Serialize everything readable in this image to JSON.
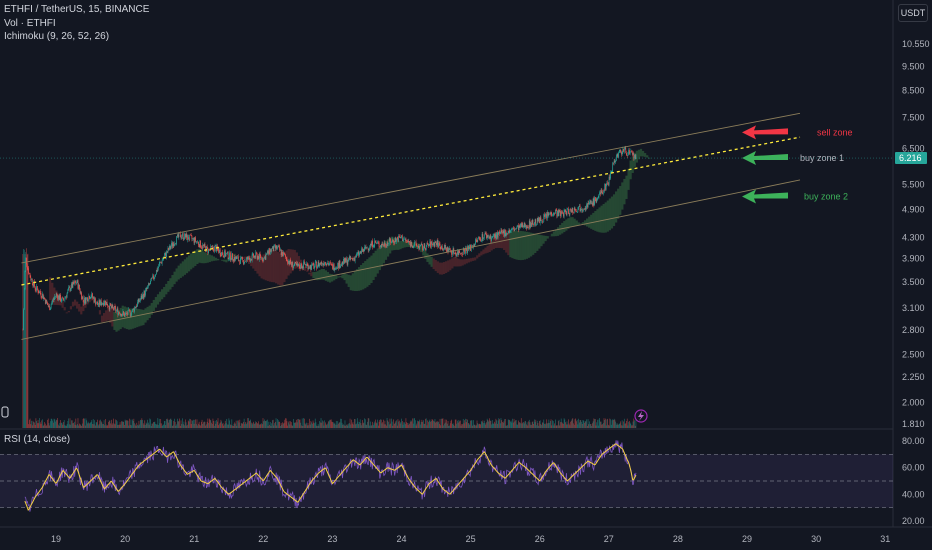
{
  "header": {
    "symbol_line": "ETHFI / TetherUS, 15, BINANCE",
    "vol_line": "Vol · ETHFI",
    "ichimoku_line": "Ichimoku (9, 26, 52, 26)",
    "currency_button": "USDT",
    "rsi_line": "RSI (14, close)"
  },
  "colors": {
    "background": "#131722",
    "up": "#26a69a",
    "down": "#ef5350",
    "channel": "#8b7d5a",
    "midline": "#ffeb3b",
    "rsi_line": "#7e57c2",
    "rsi_ma": "#f5d142",
    "cloud_green": "#2e5c3a",
    "cloud_red": "#5c2a2e",
    "sell_arrow": "#f23645",
    "buy_arrow": "#3db25a"
  },
  "chart_data": [
    {
      "type": "candlestick",
      "price_axis": {
        "scale": "log",
        "ticks": [
          "10.550",
          "9.500",
          "8.500",
          "7.500",
          "6.500",
          "5.500",
          "4.900",
          "4.300",
          "3.900",
          "3.500",
          "3.100",
          "2.800",
          "2.500",
          "2.250",
          "2.000",
          "1.810"
        ],
        "current_price": "6.216"
      },
      "time_axis": {
        "ticks": [
          "19",
          "20",
          "21",
          "22",
          "23",
          "24",
          "25",
          "26",
          "27",
          "28",
          "29",
          "30",
          "31"
        ],
        "range": [
          18.5,
          31.1
        ]
      },
      "price_path": [
        [
          18.52,
          2.8
        ],
        [
          18.56,
          3.9
        ],
        [
          18.62,
          3.6
        ],
        [
          18.7,
          3.4
        ],
        [
          18.8,
          3.3
        ],
        [
          18.9,
          3.1
        ],
        [
          19.0,
          3.3
        ],
        [
          19.1,
          3.2
        ],
        [
          19.2,
          3.4
        ],
        [
          19.3,
          3.5
        ],
        [
          19.4,
          3.2
        ],
        [
          19.5,
          3.3
        ],
        [
          19.6,
          3.15
        ],
        [
          19.7,
          3.2
        ],
        [
          19.8,
          3.1
        ],
        [
          19.9,
          3.05
        ],
        [
          20.0,
          3.0
        ],
        [
          20.1,
          3.05
        ],
        [
          20.2,
          3.2
        ],
        [
          20.3,
          3.35
        ],
        [
          20.4,
          3.55
        ],
        [
          20.5,
          3.8
        ],
        [
          20.6,
          4.0
        ],
        [
          20.7,
          4.2
        ],
        [
          20.8,
          4.35
        ],
        [
          20.9,
          4.3
        ],
        [
          21.0,
          4.25
        ],
        [
          21.1,
          4.15
        ],
        [
          21.2,
          4.05
        ],
        [
          21.3,
          4.1
        ],
        [
          21.4,
          4.0
        ],
        [
          21.5,
          3.95
        ],
        [
          21.6,
          3.9
        ],
        [
          21.7,
          3.85
        ],
        [
          21.8,
          3.9
        ],
        [
          21.9,
          3.95
        ],
        [
          22.0,
          3.9
        ],
        [
          22.1,
          4.05
        ],
        [
          22.2,
          4.1
        ],
        [
          22.3,
          3.95
        ],
        [
          22.4,
          3.8
        ],
        [
          22.5,
          3.75
        ],
        [
          22.6,
          3.8
        ],
        [
          22.7,
          3.75
        ],
        [
          22.8,
          3.8
        ],
        [
          22.9,
          3.85
        ],
        [
          23.0,
          3.75
        ],
        [
          23.1,
          3.8
        ],
        [
          23.2,
          3.85
        ],
        [
          23.3,
          3.9
        ],
        [
          23.4,
          4.0
        ],
        [
          23.5,
          4.1
        ],
        [
          23.6,
          4.2
        ],
        [
          23.7,
          4.15
        ],
        [
          23.8,
          4.2
        ],
        [
          23.9,
          4.25
        ],
        [
          24.0,
          4.3
        ],
        [
          24.1,
          4.2
        ],
        [
          24.2,
          4.15
        ],
        [
          24.3,
          4.1
        ],
        [
          24.4,
          4.15
        ],
        [
          24.5,
          4.2
        ],
        [
          24.6,
          4.1
        ],
        [
          24.7,
          4.05
        ],
        [
          24.8,
          4.0
        ],
        [
          24.9,
          4.05
        ],
        [
          25.0,
          4.1
        ],
        [
          25.1,
          4.25
        ],
        [
          25.2,
          4.35
        ],
        [
          25.3,
          4.3
        ],
        [
          25.4,
          4.35
        ],
        [
          25.5,
          4.4
        ],
        [
          25.6,
          4.45
        ],
        [
          25.7,
          4.5
        ],
        [
          25.8,
          4.55
        ],
        [
          25.9,
          4.6
        ],
        [
          26.0,
          4.65
        ],
        [
          26.1,
          4.75
        ],
        [
          26.2,
          4.85
        ],
        [
          26.3,
          4.8
        ],
        [
          26.4,
          4.85
        ],
        [
          26.5,
          4.9
        ],
        [
          26.6,
          4.95
        ],
        [
          26.7,
          5.0
        ],
        [
          26.8,
          5.1
        ],
        [
          26.9,
          5.3
        ],
        [
          27.0,
          5.6
        ],
        [
          27.05,
          6.0
        ],
        [
          27.12,
          6.3
        ],
        [
          27.2,
          6.45
        ],
        [
          27.3,
          6.35
        ],
        [
          27.4,
          6.22
        ]
      ],
      "channel": {
        "upper": [
          [
            18.5,
            3.82
          ],
          [
            27.0,
            6.45
          ]
        ],
        "lower": [
          [
            18.5,
            2.68
          ],
          [
            28.0,
            5.0
          ]
        ],
        "mid": [
          [
            18.5,
            3.45
          ],
          [
            28.0,
            6.15
          ]
        ]
      },
      "annotations": [
        {
          "text": "sell zone",
          "color": "#f23645",
          "price": 7.0,
          "time": 28.6
        },
        {
          "text": "buy zone 1",
          "color": "#b2b5be",
          "price": 6.216,
          "time": 28.8
        },
        {
          "text": "buy zone 2",
          "color": "#3db25a",
          "price": 5.2,
          "time": 28.85
        }
      ]
    },
    {
      "type": "line",
      "name": "RSI (14, close)",
      "y_axis": {
        "ticks": [
          "80.00",
          "60.00",
          "40.00",
          "20.00"
        ],
        "range": [
          15,
          85
        ],
        "bands": [
          70,
          50,
          30
        ]
      },
      "rsi_path": [
        [
          18.55,
          35
        ],
        [
          18.6,
          28
        ],
        [
          18.7,
          38
        ],
        [
          18.8,
          45
        ],
        [
          18.9,
          55
        ],
        [
          19.0,
          48
        ],
        [
          19.1,
          58
        ],
        [
          19.2,
          52
        ],
        [
          19.3,
          60
        ],
        [
          19.4,
          45
        ],
        [
          19.5,
          50
        ],
        [
          19.6,
          55
        ],
        [
          19.7,
          44
        ],
        [
          19.8,
          50
        ],
        [
          19.9,
          42
        ],
        [
          20.0,
          48
        ],
        [
          20.1,
          55
        ],
        [
          20.2,
          62
        ],
        [
          20.3,
          66
        ],
        [
          20.4,
          70
        ],
        [
          20.5,
          74
        ],
        [
          20.6,
          68
        ],
        [
          20.7,
          72
        ],
        [
          20.8,
          62
        ],
        [
          20.9,
          55
        ],
        [
          21.0,
          58
        ],
        [
          21.1,
          50
        ],
        [
          21.2,
          48
        ],
        [
          21.3,
          52
        ],
        [
          21.4,
          45
        ],
        [
          21.5,
          40
        ],
        [
          21.6,
          44
        ],
        [
          21.7,
          48
        ],
        [
          21.8,
          52
        ],
        [
          21.9,
          56
        ],
        [
          22.0,
          50
        ],
        [
          22.1,
          58
        ],
        [
          22.2,
          52
        ],
        [
          22.3,
          42
        ],
        [
          22.4,
          38
        ],
        [
          22.5,
          34
        ],
        [
          22.6,
          42
        ],
        [
          22.7,
          50
        ],
        [
          22.8,
          56
        ],
        [
          22.9,
          60
        ],
        [
          23.0,
          48
        ],
        [
          23.1,
          54
        ],
        [
          23.2,
          60
        ],
        [
          23.3,
          66
        ],
        [
          23.4,
          62
        ],
        [
          23.5,
          68
        ],
        [
          23.6,
          62
        ],
        [
          23.7,
          56
        ],
        [
          23.8,
          60
        ],
        [
          23.9,
          58
        ],
        [
          24.0,
          62
        ],
        [
          24.1,
          52
        ],
        [
          24.2,
          45
        ],
        [
          24.3,
          40
        ],
        [
          24.4,
          48
        ],
        [
          24.5,
          52
        ],
        [
          24.6,
          44
        ],
        [
          24.7,
          40
        ],
        [
          24.8,
          46
        ],
        [
          24.9,
          52
        ],
        [
          25.0,
          58
        ],
        [
          25.1,
          66
        ],
        [
          25.2,
          72
        ],
        [
          25.3,
          62
        ],
        [
          25.4,
          56
        ],
        [
          25.5,
          52
        ],
        [
          25.6,
          58
        ],
        [
          25.7,
          64
        ],
        [
          25.8,
          60
        ],
        [
          25.9,
          55
        ],
        [
          26.0,
          50
        ],
        [
          26.1,
          58
        ],
        [
          26.2,
          64
        ],
        [
          26.3,
          56
        ],
        [
          26.4,
          50
        ],
        [
          26.5,
          55
        ],
        [
          26.6,
          60
        ],
        [
          26.7,
          65
        ],
        [
          26.8,
          62
        ],
        [
          26.9,
          70
        ],
        [
          27.0,
          74
        ],
        [
          27.1,
          78
        ],
        [
          27.2,
          74
        ],
        [
          27.3,
          62
        ],
        [
          27.35,
          50
        ],
        [
          27.4,
          55
        ]
      ],
      "x_ticks": [
        "19",
        "20",
        "21",
        "22",
        "23",
        "24",
        "25",
        "26",
        "27",
        "28",
        "29",
        "30",
        "31"
      ]
    }
  ]
}
